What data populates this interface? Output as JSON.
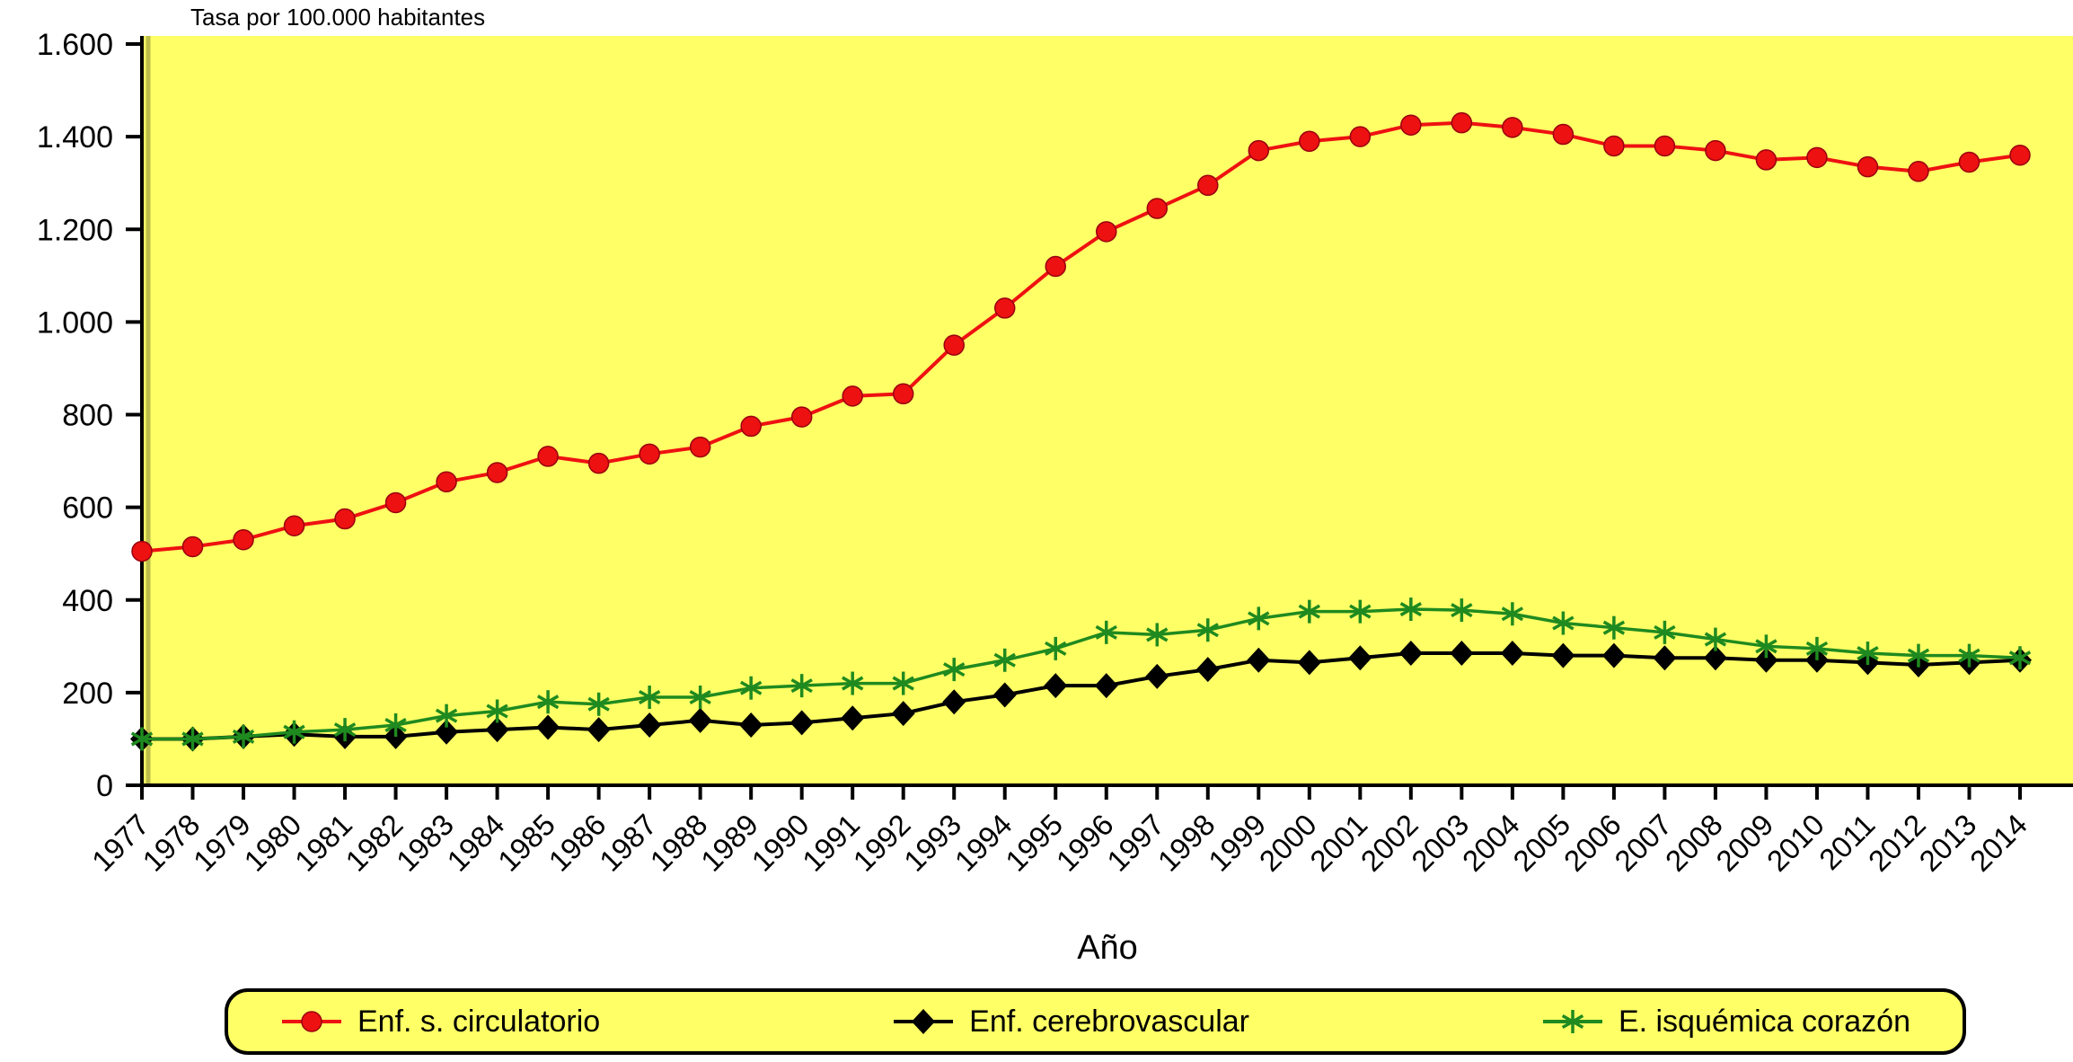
{
  "page": {
    "background": "#FFFFFF"
  },
  "chart_data": {
    "type": "line",
    "ylabel": "Tasa por 100.000 habitantes",
    "xlabel": "Año",
    "ylim": [
      0,
      1600
    ],
    "ytick_interval": 200,
    "ytick_labels": [
      "0",
      "200",
      "400",
      "600",
      "800",
      "1.000",
      "1.200",
      "1.400",
      "1.600"
    ],
    "grid": false,
    "legend_position": "bottom",
    "plot_background": "#FFFF66",
    "x": [
      1977,
      1978,
      1979,
      1980,
      1981,
      1982,
      1983,
      1984,
      1985,
      1986,
      1987,
      1988,
      1989,
      1990,
      1991,
      1992,
      1993,
      1994,
      1995,
      1996,
      1997,
      1998,
      1999,
      2000,
      2001,
      2002,
      2003,
      2004,
      2005,
      2006,
      2007,
      2008,
      2009,
      2010,
      2011,
      2012,
      2013,
      2014
    ],
    "series": [
      {
        "name": "Enf. s. circulatorio",
        "color": "#EE1111",
        "marker": "circle",
        "values": [
          505,
          515,
          530,
          560,
          575,
          610,
          655,
          675,
          710,
          695,
          715,
          730,
          775,
          795,
          840,
          845,
          950,
          1030,
          1120,
          1195,
          1245,
          1295,
          1370,
          1390,
          1400,
          1425,
          1430,
          1420,
          1405,
          1380,
          1380,
          1370,
          1350,
          1355,
          1335,
          1325,
          1345,
          1360
        ]
      },
      {
        "name": "Enf. cerebrovascular",
        "color": "#000000",
        "marker": "diamond",
        "values": [
          100,
          100,
          105,
          110,
          105,
          105,
          115,
          120,
          125,
          120,
          130,
          140,
          130,
          135,
          145,
          155,
          180,
          195,
          215,
          215,
          235,
          250,
          270,
          265,
          275,
          285,
          285,
          285,
          280,
          280,
          275,
          275,
          270,
          270,
          265,
          260,
          265,
          270
        ]
      },
      {
        "name": "E. isquémica corazón",
        "color": "#1F8A1F",
        "marker": "asterisk",
        "values": [
          100,
          100,
          105,
          115,
          120,
          130,
          150,
          160,
          180,
          175,
          190,
          190,
          210,
          215,
          220,
          220,
          250,
          270,
          295,
          330,
          325,
          335,
          360,
          375,
          375,
          380,
          378,
          370,
          350,
          340,
          330,
          315,
          300,
          295,
          285,
          280,
          280,
          275
        ]
      }
    ]
  }
}
